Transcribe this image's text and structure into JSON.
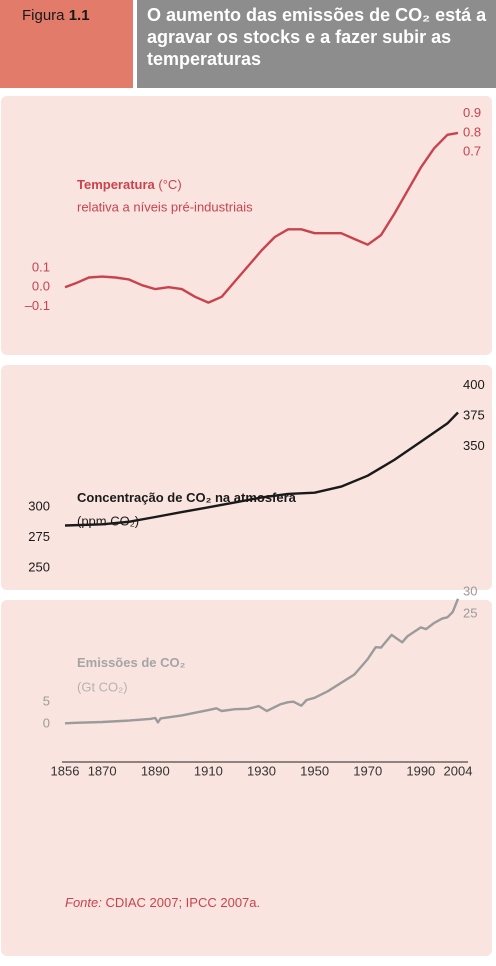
{
  "figure_label": "Figura",
  "figure_number": "1.1",
  "title": "O aumento das emissões de CO₂ está a agravar os stocks e a fazer subir as temperaturas",
  "source": {
    "label": "Fonte:",
    "text": "CDIAC 2007; IPCC 2007a."
  },
  "chart_data": [
    {
      "type": "line",
      "label": "Temperatura",
      "unit": " (°C)",
      "sublabel": "relativa a níveis pré-industriais",
      "color": "#c9434e",
      "x": [
        1856,
        1860,
        1865,
        1870,
        1875,
        1880,
        1885,
        1890,
        1895,
        1900,
        1905,
        1910,
        1915,
        1920,
        1925,
        1930,
        1935,
        1940,
        1945,
        1950,
        1955,
        1960,
        1965,
        1970,
        1975,
        1980,
        1985,
        1990,
        1995,
        2000,
        2004
      ],
      "values": [
        0.0,
        0.02,
        0.05,
        0.055,
        0.05,
        0.04,
        0.01,
        -0.01,
        0.0,
        -0.01,
        -0.05,
        -0.08,
        -0.05,
        0.03,
        0.11,
        0.19,
        0.26,
        0.3,
        0.3,
        0.28,
        0.28,
        0.28,
        0.25,
        0.22,
        0.27,
        0.38,
        0.5,
        0.62,
        0.72,
        0.79,
        0.8
      ],
      "xlim": [
        1856,
        2004
      ],
      "ylim": [
        -0.3,
        0.95
      ],
      "yticks": [
        0.1,
        {
          "value": 0,
          "label": "0.0"
        },
        {
          "value": -0.1,
          "label": "–0.1"
        }
      ],
      "y2lim": [
        -0.3,
        0.95
      ],
      "y2ticks": [
        0.9,
        0.8,
        0.7
      ]
    },
    {
      "type": "line",
      "label": "Concentração de CO₂ na atmosfera",
      "unit": "(ppm CO₂)",
      "color": "#1a1a1a",
      "x": [
        1856,
        1870,
        1880,
        1890,
        1900,
        1910,
        1920,
        1930,
        1940,
        1950,
        1960,
        1970,
        1980,
        1990,
        2000,
        2004
      ],
      "values": [
        285,
        286,
        288,
        292,
        296,
        300,
        304,
        308,
        311,
        312,
        317,
        326,
        339,
        354,
        369,
        378
      ],
      "xlim": [
        1856,
        2004
      ],
      "ylim": [
        236,
        413
      ],
      "yticks": [
        300,
        275,
        250
      ],
      "y2lim": [
        236,
        413
      ],
      "y2ticks": [
        400,
        375,
        350
      ]
    },
    {
      "type": "line",
      "label": "Emissões de CO₂",
      "unit": "(Gt CO₂)",
      "color": "#9b9b9b",
      "x": [
        1856,
        1860,
        1870,
        1880,
        1888,
        1890,
        1891,
        1892,
        1900,
        1910,
        1913,
        1915,
        1920,
        1925,
        1929,
        1932,
        1937,
        1940,
        1942,
        1945,
        1947,
        1950,
        1955,
        1960,
        1965,
        1970,
        1973,
        1975,
        1979,
        1983,
        1985,
        1990,
        1992,
        1995,
        1998,
        2000,
        2002,
        2004
      ],
      "values": [
        0.2,
        0.3,
        0.5,
        0.8,
        1.2,
        1.4,
        0.4,
        1.3,
        2.0,
        3.2,
        3.6,
        3.0,
        3.4,
        3.5,
        4.1,
        3.0,
        4.5,
        5.0,
        5.1,
        4.2,
        5.5,
        6.0,
        7.5,
        9.4,
        11.3,
        14.8,
        17.5,
        17.4,
        20.3,
        18.6,
        20.0,
        22.0,
        21.6,
        23.0,
        24.0,
        24.3,
        25.5,
        28.5
      ],
      "xlim": [
        1856,
        2004
      ],
      "ylim": [
        -3.6,
        30.5
      ],
      "yticks": [
        5,
        0
      ],
      "y2lim": [
        -3.6,
        30.5
      ],
      "y2ticks": [
        30,
        25
      ],
      "xticks": [
        1856,
        1870,
        1890,
        1910,
        1930,
        1950,
        1970,
        1990,
        2004
      ]
    }
  ]
}
